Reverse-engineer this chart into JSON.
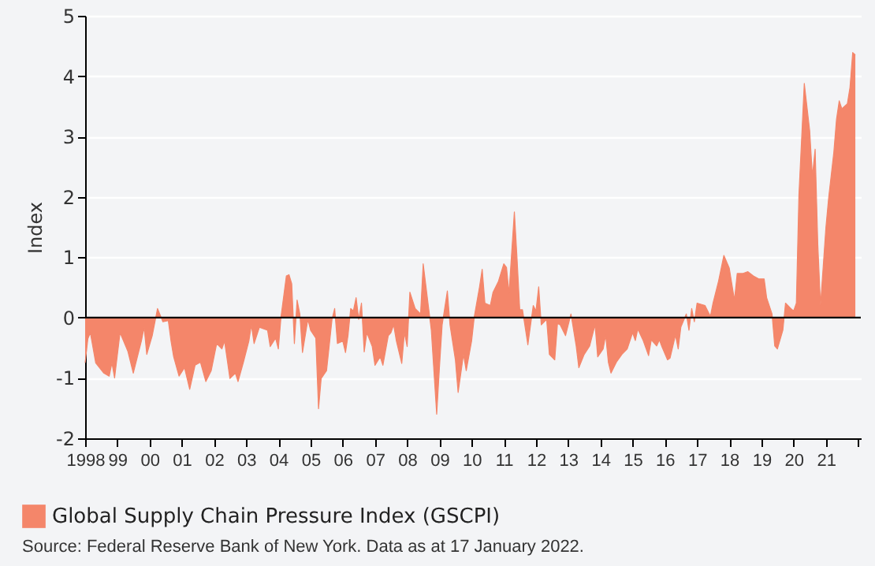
{
  "chart_data": {
    "type": "area",
    "ylabel": "Index",
    "annotations": [
      "Source: Federal Reserve Bank of New York. Data as at 17 January 2022."
    ],
    "xlim": [
      "1998-01",
      "2022-02"
    ],
    "ylim": [
      -2,
      5
    ],
    "yticks": [
      -2,
      -1,
      0,
      1,
      2,
      3,
      4,
      5
    ],
    "xticks": [
      {
        "value": "1998",
        "label": "1998"
      },
      {
        "value": "1999",
        "label": "99"
      },
      {
        "value": "2000",
        "label": "00"
      },
      {
        "value": "2001",
        "label": "01"
      },
      {
        "value": "2002",
        "label": "02"
      },
      {
        "value": "2003",
        "label": "03"
      },
      {
        "value": "2004",
        "label": "04"
      },
      {
        "value": "2005",
        "label": "05"
      },
      {
        "value": "2006",
        "label": "06"
      },
      {
        "value": "2007",
        "label": "07"
      },
      {
        "value": "2008",
        "label": "08"
      },
      {
        "value": "2009",
        "label": "09"
      },
      {
        "value": "2010",
        "label": "10"
      },
      {
        "value": "2011",
        "label": "11"
      },
      {
        "value": "2012",
        "label": "12"
      },
      {
        "value": "2013",
        "label": "13"
      },
      {
        "value": "2014",
        "label": "14"
      },
      {
        "value": "2015",
        "label": "15"
      },
      {
        "value": "2016",
        "label": "16"
      },
      {
        "value": "2017",
        "label": "17"
      },
      {
        "value": "2018",
        "label": "18"
      },
      {
        "value": "2019",
        "label": "19"
      },
      {
        "value": "2020",
        "label": "20"
      },
      {
        "value": "2021",
        "label": "21"
      },
      {
        "value": "2022",
        "label": null
      }
    ],
    "grid": "y",
    "legend": "bottom",
    "ref_lines": [
      {
        "axis": "y",
        "value": 0,
        "color": "#000000"
      }
    ],
    "x": [
      "1998-01",
      "1998-02",
      "1998-03",
      "1998-05",
      "1998-08",
      "1998-10",
      "1998-11",
      "1998-12",
      "1999-02",
      "1999-05",
      "1999-07",
      "1999-10",
      "1999-11",
      "1999-12",
      "2000-02",
      "2000-04",
      "2000-06",
      "2000-08",
      "2000-09",
      "2000-10",
      "2000-12",
      "2001-02",
      "2001-04",
      "2001-06",
      "2001-08",
      "2001-10",
      "2001-12",
      "2002-02",
      "2002-04",
      "2002-05",
      "2002-07",
      "2002-09",
      "2002-10",
      "2002-12",
      "2003-02",
      "2003-03",
      "2003-04",
      "2003-06",
      "2003-09",
      "2003-10",
      "2003-12",
      "2004-01",
      "2004-02",
      "2004-04",
      "2004-05",
      "2004-06",
      "2004-07",
      "2004-08",
      "2004-09",
      "2004-10",
      "2004-12",
      "2005-01",
      "2005-03",
      "2005-04",
      "2005-05",
      "2005-07",
      "2005-09",
      "2005-10",
      "2005-11",
      "2006-01",
      "2006-02",
      "2006-03",
      "2006-04",
      "2006-05",
      "2006-06",
      "2006-07",
      "2006-08",
      "2006-09",
      "2006-10",
      "2006-12",
      "2007-01",
      "2007-03",
      "2007-04",
      "2007-06",
      "2007-07",
      "2007-08",
      "2007-09",
      "2007-11",
      "2007-12",
      "2008-01",
      "2008-02",
      "2008-04",
      "2008-06",
      "2008-07",
      "2008-09",
      "2008-10",
      "2008-12",
      "2009-01",
      "2009-02",
      "2009-04",
      "2009-05",
      "2009-07",
      "2009-08",
      "2009-10",
      "2009-11",
      "2010-01",
      "2010-02",
      "2010-04",
      "2010-05",
      "2010-06",
      "2010-08",
      "2010-09",
      "2010-11",
      "2011-01",
      "2011-02",
      "2011-03",
      "2011-05",
      "2011-06",
      "2011-07",
      "2011-08",
      "2011-10",
      "2011-12",
      "2012-01",
      "2012-02",
      "2012-03",
      "2012-05",
      "2012-06",
      "2012-08",
      "2012-09",
      "2012-10",
      "2012-12",
      "2013-02",
      "2013-04",
      "2013-05",
      "2013-07",
      "2013-09",
      "2013-11",
      "2013-12",
      "2014-02",
      "2014-03",
      "2014-04",
      "2014-05",
      "2014-07",
      "2014-09",
      "2014-11",
      "2015-01",
      "2015-02",
      "2015-03",
      "2015-05",
      "2015-07",
      "2015-08",
      "2015-10",
      "2015-11",
      "2015-12",
      "2016-02",
      "2016-03",
      "2016-05",
      "2016-06",
      "2016-07",
      "2016-09",
      "2016-10",
      "2016-11",
      "2016-12",
      "2017-01",
      "2017-04",
      "2017-06",
      "2017-07",
      "2017-09",
      "2017-11",
      "2018-01",
      "2018-03",
      "2018-04",
      "2018-06",
      "2018-08",
      "2018-10",
      "2018-12",
      "2019-02",
      "2019-03",
      "2019-05",
      "2019-06",
      "2019-07",
      "2019-09",
      "2019-10",
      "2019-12",
      "2020-01",
      "2020-02",
      "2020-03",
      "2020-05",
      "2020-07",
      "2020-08",
      "2020-09",
      "2020-10",
      "2020-11",
      "2021-01",
      "2021-02",
      "2021-04",
      "2021-05",
      "2021-06",
      "2021-07",
      "2021-09",
      "2021-10",
      "2021-11",
      "2021-12"
    ],
    "series": [
      {
        "name": "Global Supply Chain Pressure Index (GSCPI)",
        "color": "#f4866a",
        "values": [
          -0.75,
          -0.35,
          -0.25,
          -0.75,
          -0.92,
          -0.97,
          -0.75,
          -1.0,
          -0.25,
          -0.56,
          -0.92,
          -0.39,
          -0.16,
          -0.61,
          -0.3,
          0.15,
          -0.07,
          -0.05,
          -0.39,
          -0.65,
          -0.97,
          -0.83,
          -1.19,
          -0.79,
          -0.74,
          -1.06,
          -0.88,
          -0.43,
          -0.52,
          -0.39,
          -1.01,
          -0.92,
          -1.06,
          -0.74,
          -0.39,
          -0.12,
          -0.43,
          -0.16,
          -0.21,
          -0.48,
          -0.34,
          -0.52,
          0.02,
          0.69,
          0.71,
          0.56,
          -0.43,
          0.29,
          0.06,
          -0.58,
          -0.03,
          -0.21,
          -0.34,
          -1.51,
          -1.01,
          -0.88,
          -0.03,
          0.15,
          -0.43,
          -0.39,
          -0.58,
          -0.3,
          0.15,
          0.11,
          0.33,
          -0.03,
          0.24,
          -0.57,
          -0.25,
          -0.48,
          -0.79,
          -0.65,
          -0.79,
          -0.3,
          -0.25,
          -0.12,
          -0.39,
          -0.76,
          -0.25,
          -0.48,
          0.42,
          0.15,
          0.06,
          0.89,
          0.15,
          -0.21,
          -1.6,
          -0.83,
          -0.12,
          0.44,
          -0.12,
          -0.7,
          -1.24,
          -0.61,
          -0.88,
          -0.39,
          0.02,
          0.51,
          0.8,
          0.24,
          0.2,
          0.42,
          0.6,
          0.89,
          0.83,
          0.4,
          1.75,
          0.96,
          0.13,
          0.13,
          -0.45,
          0.2,
          0.11,
          0.51,
          -0.12,
          -0.03,
          -0.61,
          -0.7,
          -0.1,
          -0.12,
          -0.3,
          0.06,
          -0.47,
          -0.83,
          -0.61,
          -0.47,
          -0.12,
          -0.65,
          -0.52,
          -0.29,
          -0.74,
          -0.92,
          -0.74,
          -0.61,
          -0.52,
          -0.25,
          -0.38,
          -0.19,
          -0.38,
          -0.63,
          -0.37,
          -0.47,
          -0.37,
          -0.49,
          -0.7,
          -0.67,
          -0.29,
          -0.52,
          -0.16,
          0.06,
          -0.21,
          0.15,
          -0.07,
          0.24,
          0.2,
          0.02,
          0.24,
          0.6,
          1.03,
          0.82,
          0.29,
          0.73,
          0.73,
          0.76,
          0.69,
          0.64,
          0.64,
          0.33,
          0.06,
          -0.47,
          -0.52,
          -0.21,
          0.24,
          0.15,
          0.11,
          0.24,
          2.03,
          3.88,
          3.1,
          2.34,
          2.79,
          1.22,
          0.2,
          1.49,
          1.98,
          2.74,
          3.28,
          3.59,
          3.46,
          3.54,
          3.81,
          4.39,
          4.35
        ]
      }
    ]
  }
}
